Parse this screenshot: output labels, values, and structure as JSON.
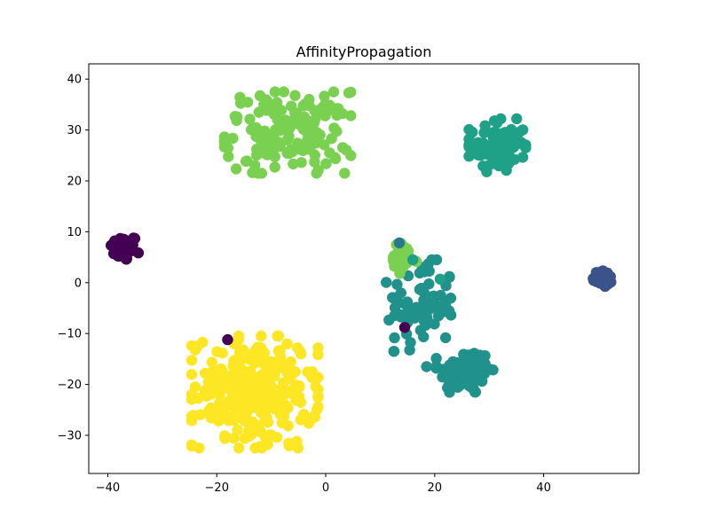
{
  "chart_data": {
    "type": "scatter",
    "title": "AffinityPropagation",
    "xlabel": "",
    "ylabel": "",
    "xlim": [
      -43.5,
      57.5
    ],
    "ylim": [
      -37.5,
      43
    ],
    "xticks": [
      -40,
      -20,
      0,
      20,
      40
    ],
    "yticks": [
      -30,
      -20,
      -10,
      0,
      10,
      20,
      30,
      40
    ],
    "grid": false,
    "legend": "none",
    "clusters": [
      {
        "color": "#440154",
        "center": [
          -37,
          6.8
        ],
        "spread": [
          1.3,
          1.3
        ],
        "count": 45
      },
      {
        "color": "#3b528b",
        "center": [
          51,
          0.8
        ],
        "spread": [
          1.0,
          0.9
        ],
        "count": 30
      },
      {
        "color": "#21918c",
        "center": [
          25.5,
          -17.5
        ],
        "spread": [
          2.6,
          2.3
        ],
        "count": 90
      },
      {
        "color": "#21918c",
        "center": [
          17.5,
          -4.5
        ],
        "spread": [
          3.2,
          4.5
        ],
        "count": 75
      },
      {
        "color": "#1fa187",
        "center": [
          31.5,
          27
        ],
        "spread": [
          2.6,
          2.6
        ],
        "count": 80
      },
      {
        "color": "#7ad151",
        "center": [
          -7,
          29.5
        ],
        "spread": [
          5.8,
          4.0
        ],
        "count": 150
      },
      {
        "color": "#7ad151",
        "center": [
          14,
          4.5
        ],
        "spread": [
          1.5,
          1.6
        ],
        "count": 25
      },
      {
        "color": "#fde725",
        "center": [
          -13,
          -21.5
        ],
        "spread": [
          5.8,
          5.5
        ],
        "count": 260
      }
    ],
    "outliers": [
      {
        "x": -18,
        "y": -11.2,
        "color": "#440154"
      },
      {
        "x": 14.5,
        "y": -8.8,
        "color": "#440154"
      },
      {
        "x": 13.5,
        "y": 7.8,
        "color": "#2a788e"
      },
      {
        "x": 16,
        "y": 4.5,
        "color": "#1fa187"
      },
      {
        "x": 21,
        "y": 0.7,
        "color": "#1fa187"
      },
      {
        "x": 18.5,
        "y": -16.5,
        "color": "#21918c"
      }
    ]
  }
}
